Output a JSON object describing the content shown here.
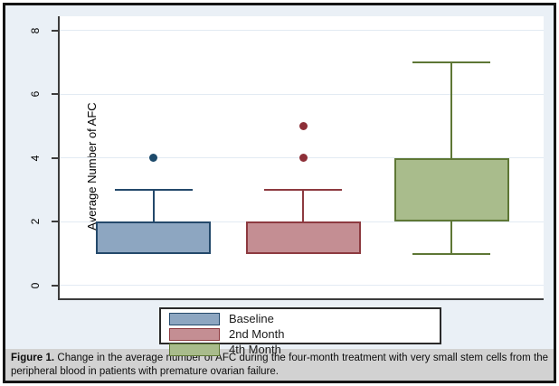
{
  "figure": {
    "caption_label": "Figure 1.",
    "caption_text": " Change in the average number of AFC during the four-month treatment with very small stem cells from the peripheral blood in patients with premature ovarian failure."
  },
  "chart_data": {
    "type": "box",
    "title": "",
    "xlabel": "",
    "ylabel": "Average Number of AFC",
    "ylim": [
      -0.4,
      8.45
    ],
    "yticks": [
      0,
      2,
      4,
      6,
      8
    ],
    "grid": true,
    "legend_position": "bottom-center",
    "legend_entries": [
      "Baseline",
      "2nd Month",
      "4th Month"
    ],
    "series": [
      {
        "name": "Baseline",
        "q1": 1,
        "median": 2,
        "q3": 2,
        "whisker_low": 1,
        "whisker_high": 3,
        "outliers": [
          4
        ],
        "fill": "#8da6c1",
        "stroke": "#24496b",
        "outlier_color": "#1d4a6b"
      },
      {
        "name": "2nd Month",
        "q1": 1,
        "median": 2,
        "q3": 2,
        "whisker_low": 1,
        "whisker_high": 3,
        "outliers": [
          4,
          5
        ],
        "fill": "#c48e93",
        "stroke": "#8d3a40",
        "outlier_color": "#8d2f38"
      },
      {
        "name": "4th Month",
        "q1": 2,
        "median": 2,
        "q3": 4,
        "whisker_low": 1,
        "whisker_high": 7,
        "outliers": [],
        "fill": "#a9bc8c",
        "stroke": "#5e7735",
        "outlier_color": "#5e7735"
      }
    ]
  },
  "colors": {
    "figure_background": "#eaf0f6",
    "plot_background": "#ffffff",
    "grid": "#e3ebf3",
    "axis": "#3c3c3c",
    "caption_background": "#d2d2d2"
  }
}
